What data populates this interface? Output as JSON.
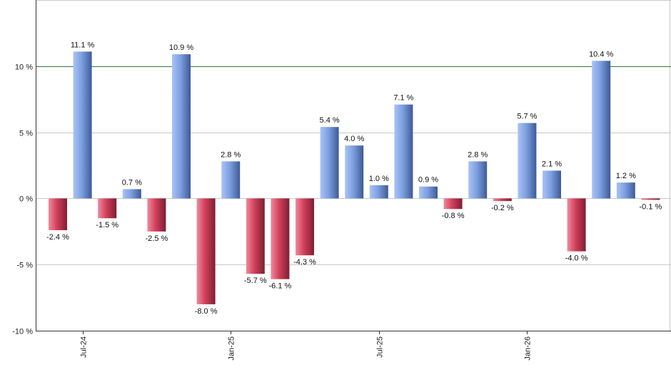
{
  "chart_data": {
    "type": "bar",
    "title": "",
    "xlabel": "",
    "ylabel": "",
    "ylim": [
      -10,
      15
    ],
    "unit": "%",
    "grid": true,
    "reference_line": {
      "value": 10,
      "color": "#2e7d32"
    },
    "colors": {
      "positive": "#7d9fe0",
      "negative": "#c8354f"
    },
    "yticks": [
      {
        "value": 10,
        "label": "10 %"
      },
      {
        "value": 5,
        "label": "5 %"
      },
      {
        "value": 0,
        "label": "0 %"
      },
      {
        "value": -5,
        "label": "-5 %"
      },
      {
        "value": -10,
        "label": "-10 %"
      }
    ],
    "x_tick_labels": [
      {
        "index": 1,
        "label": "Jul-24"
      },
      {
        "index": 7,
        "label": "Jan-25"
      },
      {
        "index": 13,
        "label": "Jul-25"
      },
      {
        "index": 19,
        "label": "Jan-26"
      }
    ],
    "values": [
      -2.4,
      11.1,
      -1.5,
      0.7,
      -2.5,
      10.9,
      -8.0,
      2.8,
      -5.7,
      -6.1,
      -4.3,
      5.4,
      4.0,
      1.0,
      7.1,
      0.9,
      -0.8,
      2.8,
      -0.2,
      5.7,
      2.1,
      -4.0,
      10.4,
      1.2,
      -0.1
    ],
    "data_labels": [
      "-2.4 %",
      "11.1 %",
      "-1.5 %",
      "0.7 %",
      "-2.5 %",
      "10.9 %",
      "-8.0 %",
      "2.8 %",
      "-5.7 %",
      "-6.1 %",
      "-4.3 %",
      "5.4 %",
      "4.0 %",
      "1.0 %",
      "7.1 %",
      "0.9 %",
      "-0.8 %",
      "2.8 %",
      "-0.2 %",
      "5.7 %",
      "2.1 %",
      "-4.0 %",
      "10.4 %",
      "1.2 %",
      "-0.1 %"
    ]
  }
}
